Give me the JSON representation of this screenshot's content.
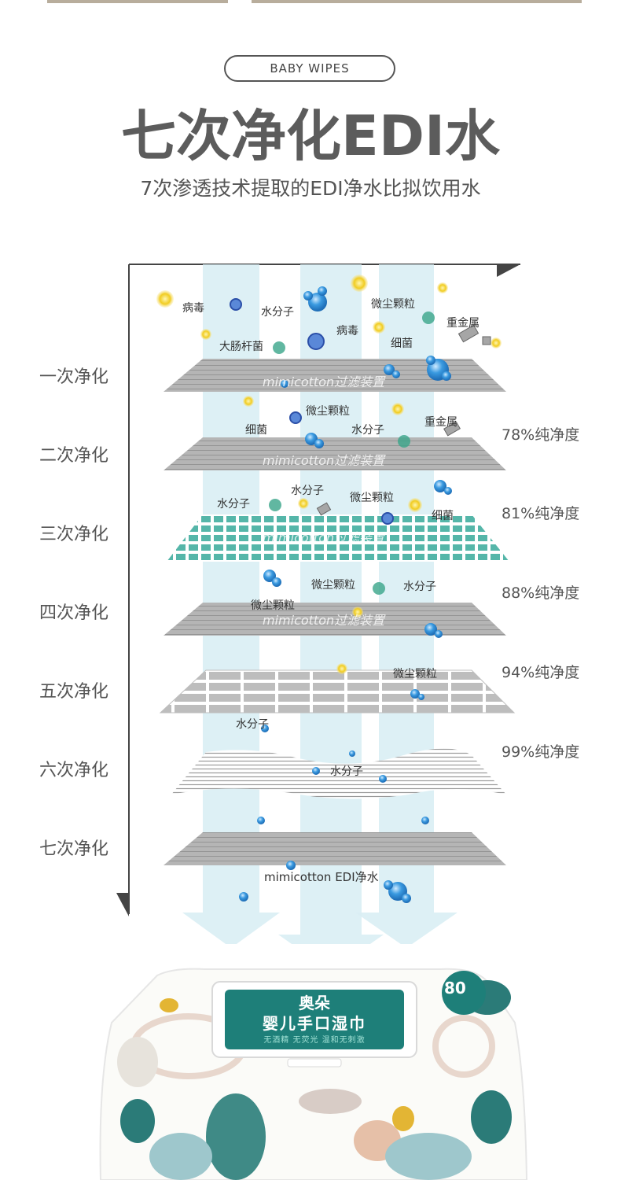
{
  "header": {
    "pill": "BABY WIPES",
    "title": "七次净化EDI水",
    "subtitle": "7次渗透技术提取的EDI净水比拟饮用水"
  },
  "steps": [
    "一次净化",
    "二次净化",
    "三次净化",
    "四次净化",
    "五次净化",
    "六次净化",
    "七次净化"
  ],
  "purity": [
    "78%纯净度",
    "81%纯净度",
    "88%纯净度",
    "94%纯净度",
    "99%纯净度"
  ],
  "filter_label": "mimicotton过滤装置",
  "particles": {
    "virus1": "病毒",
    "water1": "水分子",
    "dust1": "微尘颗粒",
    "metal1": "重金属",
    "ecoli": "大肠杆菌",
    "virus2": "病毒",
    "bacteria1": "细菌",
    "dust2": "微尘颗粒",
    "metal2": "重金属",
    "bacteria2": "细菌",
    "water2": "水分子",
    "water3": "水分子",
    "water4": "水分子",
    "dust3": "微尘颗粒",
    "bacteria3": "细菌",
    "dust4": "微尘颗粒",
    "water5": "水分子",
    "dust5": "微尘颗粒",
    "dust6": "微尘颗粒",
    "water6": "水分子",
    "water7": "水分子"
  },
  "output_label": "mimicotton EDI净水",
  "product": {
    "brand": "奥朵",
    "name": "婴儿手口湿巾",
    "features": "无酒精  无荧光  温和无刺激",
    "count": "80"
  },
  "colors": {
    "teal": "#1e7f79",
    "filter_gray": "#9a9a9a",
    "arrow_blue": "#d6ecf3",
    "accent_yellow": "#e9c21a",
    "water_blue": "#2f90d8",
    "bacteria_green": "#3aa58a"
  }
}
